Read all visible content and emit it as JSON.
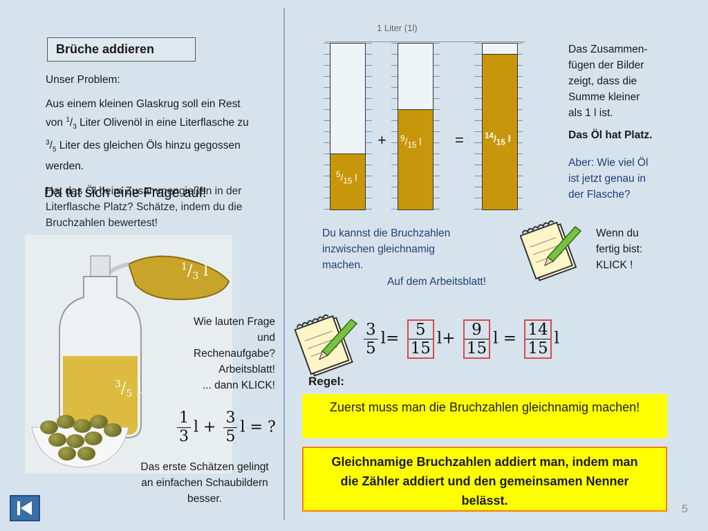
{
  "header": {
    "title": "Brüche addieren"
  },
  "left": {
    "problem_label": "Unser Problem:",
    "problem_text_a": "Aus einem kleinen Glaskrug soll ein Rest von ",
    "frac_one_third": {
      "num": "1",
      "den": "3"
    },
    "problem_text_b": " Liter Olivenöl in eine Literflasche zu ",
    "frac_three_fifths": {
      "num": "3",
      "den": "5"
    },
    "problem_text_c": " Liter des gleichen Öls hinzu gegossen werden.",
    "overlay_small": "Hat das Öl beim Zusammengießen in der Literflasche Platz? Schätze, indem du die Bruchzahlen bewertest!",
    "overlay_large": "Da tut sich eine Frage auf!",
    "jug_label": {
      "num": "1",
      "den": "3",
      "unit": "l"
    },
    "bottle_label": {
      "num": "3",
      "den": "5",
      "unit": "l"
    },
    "question_note": [
      "Wie lauten Frage",
      "und",
      "Rechenaufgabe?",
      "Arbeitsblatt!",
      "... dann KLICK!"
    ],
    "equation": {
      "a_num": "1",
      "a_den": "3",
      "b_num": "3",
      "b_den": "5",
      "unit": "l",
      "plus": "+",
      "eq": "=",
      "result": "?"
    },
    "estimate_note": "Das erste Schätzen gelingt an einfachen Schaubildern besser."
  },
  "diagram": {
    "liter_label": "1 Liter (1l)",
    "glass1": {
      "num": "5",
      "den": "15",
      "unit": "l",
      "fill": 0.333
    },
    "glass2": {
      "num": "9",
      "den": "15",
      "unit": "l",
      "fill": 0.6
    },
    "glass3": {
      "num": "14",
      "den": "15",
      "unit": "l",
      "fill": 0.933
    },
    "plus": "+",
    "equals": "=",
    "oil_color": "#c8960a"
  },
  "right": {
    "sum_note": "Das Zusammen-fügen der Bilder zeigt, dass die Summe kleiner als 1 l ist.",
    "sum_note_lines": [
      "Das Zusammen-",
      "fügen der Bilder",
      "zeigt, dass die",
      "Summe kleiner",
      "als 1 l ist."
    ],
    "fits": "Das Öl hat Platz.",
    "question_lines": [
      "Aber: Wie viel Öl",
      "ist jetzt genau in",
      "der Flasche?"
    ],
    "done_lines": [
      "Wenn du",
      "fertig bist:",
      "KLICK !"
    ]
  },
  "middle": {
    "hint_lines": [
      "Du kannst die Bruchzahlen",
      "inzwischen gleichnamig",
      "machen."
    ],
    "worksheet": "Auf dem Arbeitsblatt!"
  },
  "big_equation": {
    "a_num": "3",
    "a_den": "5",
    "b_num": "5",
    "b_den": "15",
    "c_num": "9",
    "c_den": "15",
    "d_num": "14",
    "d_den": "15",
    "unit": "l",
    "plus": "+",
    "eq": "="
  },
  "rule": {
    "label": "Regel:",
    "box1": "Zuerst muss man die Bruchzahlen gleichnamig machen!",
    "box2": "Gleichnamige Bruchzahlen addiert man, indem man die Zähler addiert und den gemeinsamen Nenner belässt."
  },
  "footer": {
    "page": "5"
  }
}
